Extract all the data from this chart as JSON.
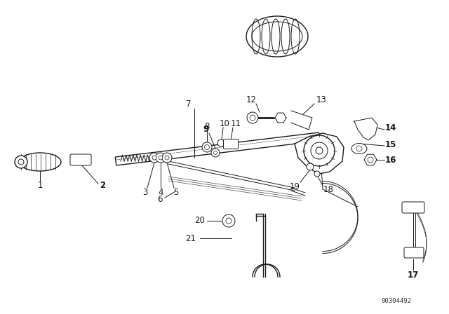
{
  "background_color": "#ffffff",
  "line_color": "#1a1a1a",
  "label_color": "#1a1a1a",
  "font_size": 8.5,
  "catalog_number": "00304492",
  "fig_width": 6.4,
  "fig_height": 4.48,
  "dpi": 100
}
